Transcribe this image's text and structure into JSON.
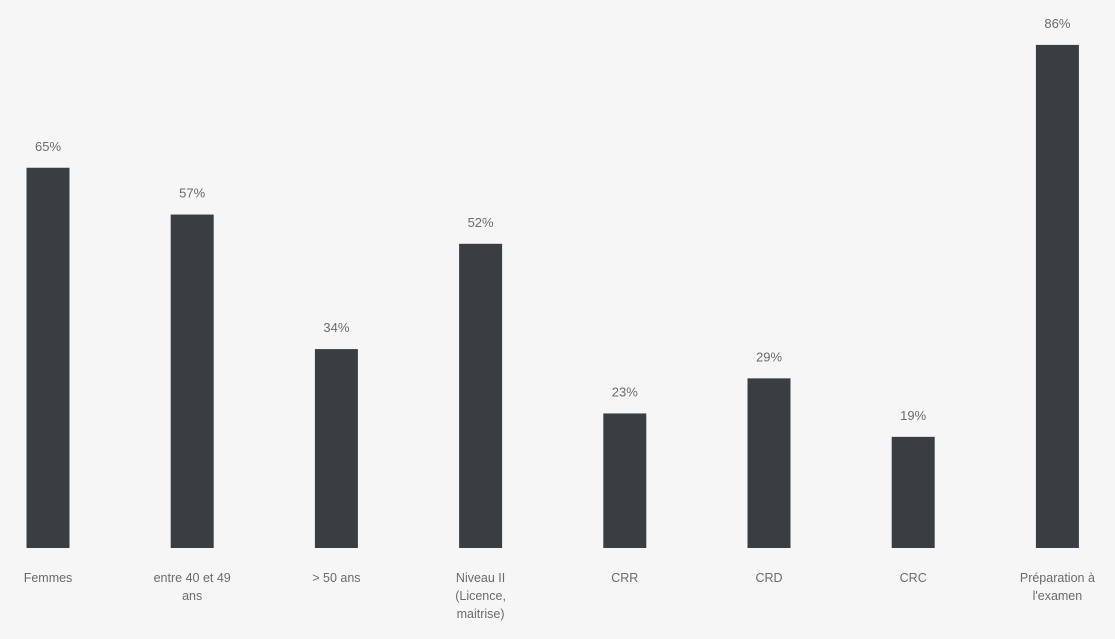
{
  "chart_data": {
    "type": "bar",
    "categories": [
      [
        "Femmes"
      ],
      [
        "entre  40 et 49",
        "ans"
      ],
      [
        "> 50 ans"
      ],
      [
        "Niveau II",
        "(Licence,",
        "maitrise)"
      ],
      [
        "CRR"
      ],
      [
        "CRD"
      ],
      [
        "CRC"
      ],
      [
        "Préparation à",
        "l'examen"
      ]
    ],
    "values": [
      65,
      57,
      34,
      52,
      23,
      29,
      19,
      86
    ],
    "data_labels": [
      "65%",
      "57%",
      "34%",
      "52%",
      "23%",
      "29%",
      "19%",
      "86%"
    ],
    "ylim": [
      0,
      100
    ],
    "grid": false,
    "legend": "none",
    "colors": {
      "bar": "#3a3d42",
      "text": "#6b6b6b",
      "background": "#f6f6f6"
    }
  }
}
